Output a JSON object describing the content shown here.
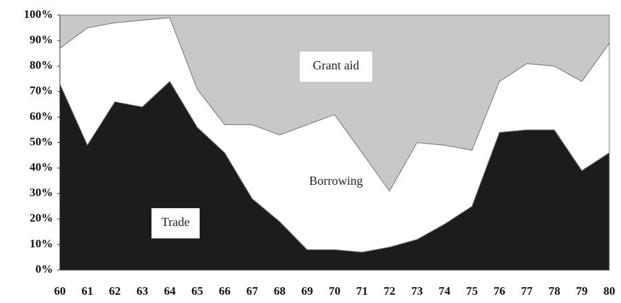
{
  "chart_data": {
    "type": "stacked_area",
    "categories": [
      "60",
      "61",
      "62",
      "63",
      "64",
      "65",
      "66",
      "67",
      "68",
      "69",
      "70",
      "71",
      "72",
      "73",
      "74",
      "75",
      "76",
      "77",
      "78",
      "79",
      "80"
    ],
    "series": [
      {
        "name": "Trade",
        "color": "#1c1c1c",
        "values": [
          73,
          49,
          66,
          64,
          74,
          56,
          46,
          28,
          19,
          8,
          8,
          7,
          9,
          12,
          18,
          25,
          54,
          55,
          55,
          39,
          46
        ]
      },
      {
        "name": "Borrowing",
        "color": "#ffffff",
        "values": [
          14,
          46,
          31,
          34,
          25,
          15,
          11,
          29,
          34,
          49,
          53,
          39,
          22,
          38,
          31,
          22,
          20,
          26,
          25,
          35,
          43
        ]
      },
      {
        "name": "Grant aid",
        "color": "#c8c8c8",
        "values": [
          13,
          5,
          3,
          2,
          1,
          29,
          43,
          43,
          47,
          43,
          39,
          54,
          69,
          50,
          51,
          53,
          26,
          19,
          20,
          26,
          11
        ]
      }
    ],
    "ylim": [
      0,
      100
    ],
    "yticks": [
      {
        "value": 0,
        "label": "0%"
      },
      {
        "value": 10,
        "label": "10%"
      },
      {
        "value": 20,
        "label": "20%"
      },
      {
        "value": 30,
        "label": "30%"
      },
      {
        "value": 40,
        "label": "40%"
      },
      {
        "value": 50,
        "label": "50%"
      },
      {
        "value": 60,
        "label": "60%"
      },
      {
        "value": 70,
        "label": "70%"
      },
      {
        "value": 80,
        "label": "80%"
      },
      {
        "value": 90,
        "label": "90%"
      },
      {
        "value": 100,
        "label": "100%"
      }
    ]
  }
}
